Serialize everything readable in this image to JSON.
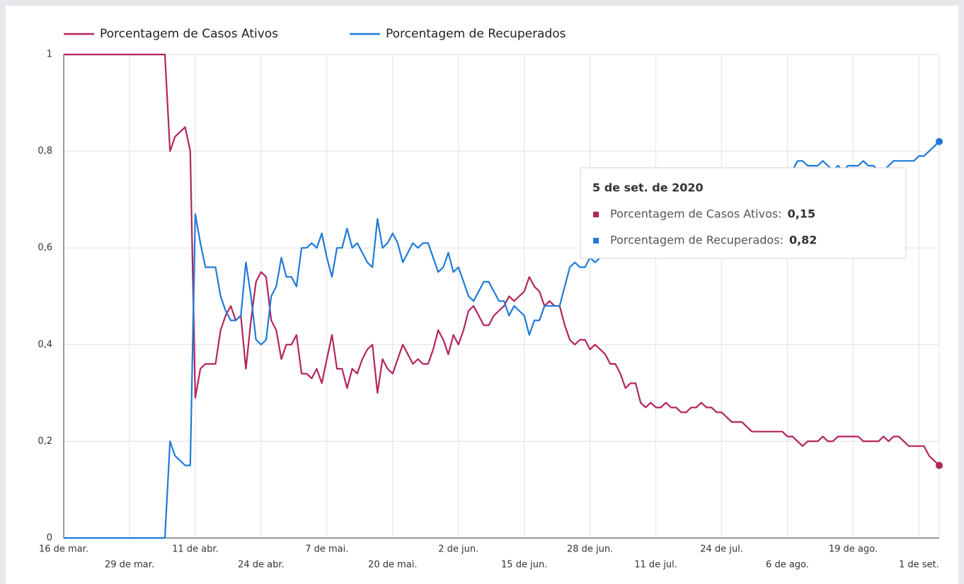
{
  "chart_data": {
    "type": "line",
    "categories": [
      "16 de mar.",
      null,
      null,
      null,
      null,
      null,
      null,
      null,
      null,
      null,
      null,
      null,
      null,
      "29 de mar.",
      null,
      null,
      null,
      null,
      null,
      null,
      null,
      null,
      null,
      null,
      null,
      null,
      "11 de abr.",
      null,
      null,
      null,
      null,
      null,
      null,
      null,
      null,
      null,
      null,
      null,
      null,
      "24 de abr.",
      null,
      null,
      null,
      null,
      null,
      null,
      null,
      null,
      null,
      null,
      null,
      null,
      "7 de mai.",
      null,
      null,
      null,
      null,
      null,
      null,
      null,
      null,
      null,
      null,
      null,
      null,
      "20 de mai.",
      null,
      null,
      null,
      null,
      null,
      null,
      null,
      null,
      null,
      null,
      null,
      null,
      "2 de jun.",
      null,
      null,
      null,
      null,
      null,
      null,
      null,
      null,
      null,
      null,
      null,
      null,
      "15 de jun.",
      null,
      null,
      null,
      null,
      null,
      null,
      null,
      null,
      null,
      null,
      null,
      null,
      "28 de jun.",
      null,
      null,
      null,
      null,
      null,
      null,
      null,
      null,
      null,
      null,
      null,
      null,
      "11 de jul.",
      null,
      null,
      null,
      null,
      null,
      null,
      null,
      null,
      null,
      null,
      null,
      null,
      "24 de jul.",
      null,
      null,
      null,
      null,
      null,
      null,
      null,
      null,
      null,
      null,
      null,
      null,
      "6 de ago.",
      null,
      null,
      null,
      null,
      null,
      null,
      null,
      null,
      null,
      null,
      null,
      null,
      "19 de ago.",
      null,
      null,
      null,
      null,
      null,
      null,
      null,
      null,
      null,
      null,
      null,
      null,
      "1 de set.",
      null,
      null,
      null,
      null
    ],
    "series": [
      {
        "name": "Porcentagem de Casos Ativos",
        "color": "#b3245c",
        "values": [
          1,
          1,
          1,
          1,
          1,
          1,
          1,
          1,
          1,
          1,
          1,
          1,
          1,
          1,
          1,
          1,
          1,
          1,
          1,
          1,
          1,
          0.8,
          0.83,
          0.84,
          0.85,
          0.8,
          0.29,
          0.35,
          0.36,
          0.36,
          0.36,
          0.43,
          0.46,
          0.48,
          0.45,
          0.46,
          0.35,
          0.45,
          0.53,
          0.55,
          0.54,
          0.45,
          0.43,
          0.37,
          0.4,
          0.4,
          0.42,
          0.34,
          0.34,
          0.33,
          0.35,
          0.32,
          0.37,
          0.42,
          0.35,
          0.35,
          0.31,
          0.35,
          0.34,
          0.37,
          0.39,
          0.4,
          0.3,
          0.37,
          0.35,
          0.34,
          0.37,
          0.4,
          0.38,
          0.36,
          0.37,
          0.36,
          0.36,
          0.39,
          0.43,
          0.41,
          0.38,
          0.42,
          0.4,
          0.43,
          0.47,
          0.48,
          0.46,
          0.44,
          0.44,
          0.46,
          0.47,
          0.48,
          0.5,
          0.49,
          0.5,
          0.51,
          0.54,
          0.52,
          0.51,
          0.48,
          0.49,
          0.48,
          0.48,
          0.44,
          0.41,
          0.4,
          0.41,
          0.41,
          0.39,
          0.4,
          0.39,
          0.38,
          0.36,
          0.36,
          0.34,
          0.31,
          0.32,
          0.32,
          0.28,
          0.27,
          0.28,
          0.27,
          0.27,
          0.28,
          0.27,
          0.27,
          0.26,
          0.26,
          0.27,
          0.27,
          0.28,
          0.27,
          0.27,
          0.26,
          0.26,
          0.25,
          0.24,
          0.24,
          0.24,
          0.23,
          0.22,
          0.22,
          0.22,
          0.22,
          0.22,
          0.22,
          0.22,
          0.21,
          0.21,
          0.2,
          0.19,
          0.2,
          0.2,
          0.2,
          0.21,
          0.2,
          0.2,
          0.21,
          0.21,
          0.21,
          0.21,
          0.21,
          0.2,
          0.2,
          0.2,
          0.2,
          0.21,
          0.2,
          0.21,
          0.21,
          0.2,
          0.19,
          0.19,
          0.19,
          0.19,
          0.17,
          0.16,
          0.15
        ]
      },
      {
        "name": "Porcentagem de Recuperados",
        "color": "#1f7ad8",
        "values": [
          0,
          0,
          0,
          0,
          0,
          0,
          0,
          0,
          0,
          0,
          0,
          0,
          0,
          0,
          0,
          0,
          0,
          0,
          0,
          0,
          0,
          0.2,
          0.17,
          0.16,
          0.15,
          0.15,
          0.67,
          0.61,
          0.56,
          0.56,
          0.56,
          0.5,
          0.47,
          0.45,
          0.45,
          0.46,
          0.57,
          0.5,
          0.41,
          0.4,
          0.41,
          0.5,
          0.52,
          0.58,
          0.54,
          0.54,
          0.52,
          0.6,
          0.6,
          0.61,
          0.6,
          0.63,
          0.58,
          0.54,
          0.6,
          0.6,
          0.64,
          0.6,
          0.61,
          0.59,
          0.57,
          0.56,
          0.66,
          0.6,
          0.61,
          0.63,
          0.61,
          0.57,
          0.59,
          0.61,
          0.6,
          0.61,
          0.61,
          0.58,
          0.55,
          0.56,
          0.59,
          0.55,
          0.56,
          0.53,
          0.5,
          0.49,
          0.51,
          0.53,
          0.53,
          0.51,
          0.49,
          0.49,
          0.46,
          0.48,
          0.47,
          0.46,
          0.42,
          0.45,
          0.45,
          0.48,
          0.48,
          0.48,
          0.48,
          0.52,
          0.56,
          0.57,
          0.56,
          0.56,
          0.58,
          0.57,
          0.58,
          0.6,
          0.6,
          0.61,
          0.62,
          0.63,
          0.63,
          0.64,
          0.65,
          0.66,
          0.66,
          0.67,
          0.68,
          0.68,
          0.69,
          0.7,
          0.7,
          0.71,
          0.71,
          0.72,
          0.72,
          0.72,
          0.73,
          0.73,
          0.73,
          0.74,
          0.74,
          0.74,
          0.75,
          0.75,
          0.75,
          0.75,
          0.75,
          0.76,
          0.76,
          0.76,
          0.76,
          0.76,
          0.76,
          0.78,
          0.78,
          0.77,
          0.77,
          0.77,
          0.78,
          0.77,
          0.76,
          0.77,
          0.76,
          0.77,
          0.77,
          0.77,
          0.78,
          0.77,
          0.77,
          0.76,
          0.76,
          0.77,
          0.78,
          0.78,
          0.78,
          0.78,
          0.78,
          0.79,
          0.79,
          0.8,
          0.81,
          0.82
        ]
      }
    ],
    "ylim": [
      0,
      1
    ],
    "yticks": [
      0,
      {
        "value": 0.2,
        "label": "0,2"
      },
      {
        "value": 0.4,
        "label": "0,4"
      },
      {
        "value": 0.6,
        "label": "0,6"
      },
      {
        "value": 0.8,
        "label": "0,8"
      },
      1
    ],
    "grid": true,
    "legend": "top",
    "tooltip": {
      "title": "5 de set. de 2020",
      "entries": [
        {
          "label": "Porcentagem de Casos Ativos:",
          "value": 0.15,
          "value_label": "0,15"
        },
        {
          "label": "Porcentagem de Recuperados:",
          "value": 0.82,
          "value_label": "0,82"
        }
      ]
    }
  }
}
